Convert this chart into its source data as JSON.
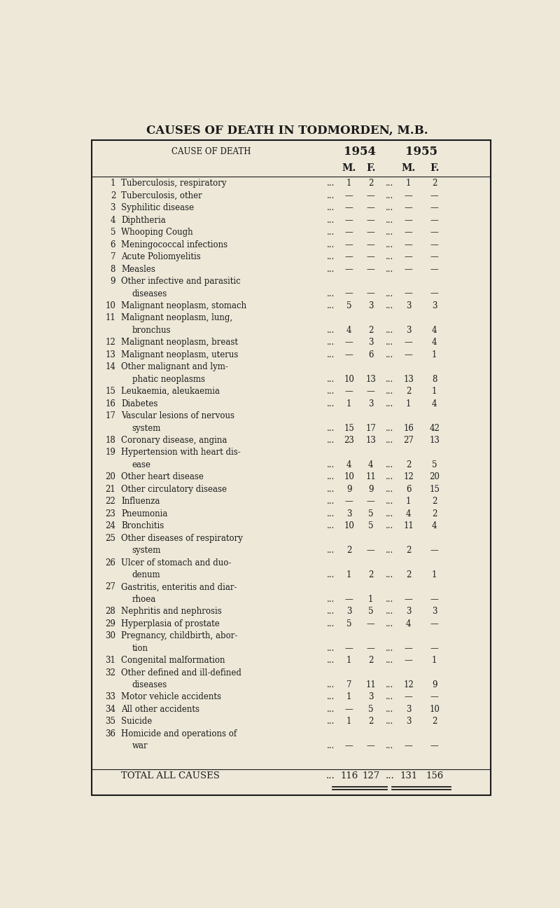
{
  "title": "CAUSES OF DEATH IN TODMORDEN, M.B.",
  "bg_color": "#ede8d8",
  "title_color": "#1a1a1a",
  "header1": "CAUSE OF DEATH",
  "header2": "1954",
  "header3": "1955",
  "col_m": "M.",
  "col_f": "F.",
  "rows": [
    {
      "num": "1",
      "cause": "Tuberculosis, respiratory",
      "m54": "1",
      "f54": "2",
      "m55": "1",
      "f55": "2"
    },
    {
      "num": "2",
      "cause": "Tuberculosis, other",
      "m54": "—",
      "f54": "—",
      "m55": "—",
      "f55": "—"
    },
    {
      "num": "3",
      "cause": "Syphilitic disease",
      "m54": "—",
      "f54": "—",
      "m55": "—",
      "f55": "—"
    },
    {
      "num": "4",
      "cause": "Diphtheria",
      "m54": "—",
      "f54": "—",
      "m55": "—",
      "f55": "—"
    },
    {
      "num": "5",
      "cause": "Whooping Cough",
      "m54": "—",
      "f54": "—",
      "m55": "—",
      "f55": "—"
    },
    {
      "num": "6",
      "cause": "Meningococcal infections",
      "m54": "—",
      "f54": "—",
      "m55": "—",
      "f55": "—"
    },
    {
      "num": "7",
      "cause": "Acute Poliomyelitis",
      "m54": "—",
      "f54": "—",
      "m55": "—",
      "f55": "—"
    },
    {
      "num": "8",
      "cause": "Measles",
      "m54": "—",
      "f54": "—",
      "m55": "—",
      "f55": "—"
    },
    {
      "num": "9",
      "cause": "Other infective and parasitic|    diseases",
      "m54": "—",
      "f54": "—",
      "m55": "—",
      "f55": "—"
    },
    {
      "num": "10",
      "cause": "Malignant neoplasm, stomach",
      "m54": "5",
      "f54": "3",
      "m55": "3",
      "f55": "3"
    },
    {
      "num": "11",
      "cause": "Malignant neoplasm, lung,|    bronchus",
      "m54": "4",
      "f54": "2",
      "m55": "3",
      "f55": "4"
    },
    {
      "num": "12",
      "cause": "Malignant neoplasm, breast",
      "m54": "—",
      "f54": "3",
      "m55": "—",
      "f55": "4"
    },
    {
      "num": "13",
      "cause": "Malignant neoplasm, uterus",
      "m54": "—",
      "f54": "6",
      "m55": "—",
      "f55": "1"
    },
    {
      "num": "14",
      "cause": "Other malignant and lym-|    phatic neoplasms",
      "m54": "10",
      "f54": "13",
      "m55": "13",
      "f55": "8"
    },
    {
      "num": "15",
      "cause": "Leukaemia, aleukaemia",
      "m54": "—",
      "f54": "—",
      "m55": "2",
      "f55": "1"
    },
    {
      "num": "16",
      "cause": "Diabetes",
      "m54": "1",
      "f54": "3",
      "m55": "1",
      "f55": "4"
    },
    {
      "num": "17",
      "cause": "Vascular lesions of nervous|    system",
      "m54": "15",
      "f54": "17",
      "m55": "16",
      "f55": "42"
    },
    {
      "num": "18",
      "cause": "Coronary disease, angina",
      "m54": "23",
      "f54": "13",
      "m55": "27",
      "f55": "13"
    },
    {
      "num": "19",
      "cause": "Hypertension with heart dis-|    ease",
      "m54": "4",
      "f54": "4",
      "m55": "2",
      "f55": "5"
    },
    {
      "num": "20",
      "cause": "Other heart disease",
      "m54": "10",
      "f54": "11",
      "m55": "12",
      "f55": "20"
    },
    {
      "num": "21",
      "cause": "Other circulatory disease",
      "m54": "9",
      "f54": "9",
      "m55": "6",
      "f55": "15"
    },
    {
      "num": "22",
      "cause": "Influenza",
      "m54": "—",
      "f54": "—",
      "m55": "1",
      "f55": "2"
    },
    {
      "num": "23",
      "cause": "Pneumonia",
      "m54": "3",
      "f54": "5",
      "m55": "4",
      "f55": "2"
    },
    {
      "num": "24",
      "cause": "Bronchitis",
      "m54": "10",
      "f54": "5",
      "m55": "11",
      "f55": "4"
    },
    {
      "num": "25",
      "cause": "Other diseases of respiratory|    system",
      "m54": "2",
      "f54": "—",
      "m55": "2",
      "f55": "—"
    },
    {
      "num": "26",
      "cause": "Ulcer of stomach and duo-|    denum",
      "m54": "1",
      "f54": "2",
      "m55": "2",
      "f55": "1"
    },
    {
      "num": "27",
      "cause": "Gastritis, enteritis and diar-|    rhoea",
      "m54": "—",
      "f54": "1",
      "m55": "—",
      "f55": "—"
    },
    {
      "num": "28",
      "cause": "Nephritis and nephrosis",
      "m54": "3",
      "f54": "5",
      "m55": "3",
      "f55": "3"
    },
    {
      "num": "29",
      "cause": "Hyperplasia of prostate",
      "m54": "5",
      "f54": "—",
      "m55": "4",
      "f55": "—"
    },
    {
      "num": "30",
      "cause": "Pregnancy, childbirth, abor-|    tion",
      "m54": "—",
      "f54": "—",
      "m55": "—",
      "f55": "—"
    },
    {
      "num": "31",
      "cause": "Congenital malformation",
      "m54": "1",
      "f54": "2",
      "m55": "—",
      "f55": "1"
    },
    {
      "num": "32",
      "cause": "Other defined and ill-defined|    diseases",
      "m54": "7",
      "f54": "11",
      "m55": "12",
      "f55": "9"
    },
    {
      "num": "33",
      "cause": "Motor vehicle accidents",
      "m54": "1",
      "f54": "3",
      "m55": "—",
      "f55": "—"
    },
    {
      "num": "34",
      "cause": "All other accidents",
      "m54": "—",
      "f54": "5",
      "m55": "3",
      "f55": "10"
    },
    {
      "num": "35",
      "cause": "Suicide",
      "m54": "1",
      "f54": "2",
      "m55": "3",
      "f55": "2"
    },
    {
      "num": "36",
      "cause": "Homicide and operations of|    war",
      "m54": "—",
      "f54": "—",
      "m55": "—",
      "f55": "—"
    },
    {
      "num": "",
      "cause": "TOTAL ALL CAUSES",
      "m54": "116",
      "f54": "127",
      "m55": "131",
      "f55": "156",
      "is_total": true
    }
  ]
}
